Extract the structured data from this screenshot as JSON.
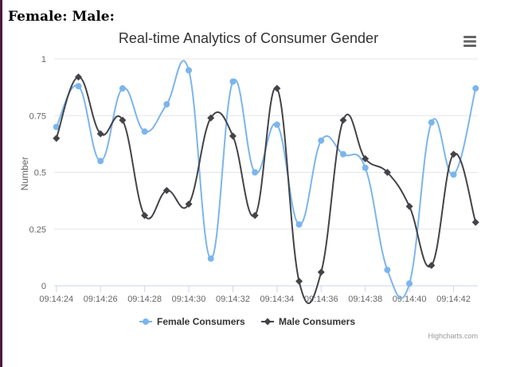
{
  "page": {
    "female_label": "Female:",
    "male_label": "Male:"
  },
  "chart_data": {
    "type": "line",
    "title": "Real-time Analytics of Consumer Gender",
    "ylabel": "Number",
    "xlabel": "",
    "ylim": [
      0,
      1
    ],
    "yticks": [
      0,
      0.25,
      0.5,
      0.75,
      1
    ],
    "ytick_labels": [
      "0",
      "0.25",
      "0.5",
      "0.75",
      "1"
    ],
    "x_range": [
      "09:14:23.90",
      "09:14:43.10"
    ],
    "x": [
      "09:14:24",
      "09:14:25",
      "09:14:26",
      "09:14:27",
      "09:14:28",
      "09:14:29",
      "09:14:30",
      "09:14:31",
      "09:14:32",
      "09:14:33",
      "09:14:34",
      "09:14:35",
      "09:14:36",
      "09:14:37",
      "09:14:38",
      "09:14:39",
      "09:14:40",
      "09:14:41",
      "09:14:42",
      "09:14:43"
    ],
    "xtick_labels": [
      "09:14:24",
      "09:14:26",
      "09:14:28",
      "09:14:30",
      "09:14:32",
      "09:14:34",
      "09:14:36",
      "09:14:38",
      "09:14:40",
      "09:14:42"
    ],
    "grid": true,
    "legend_position": "bottom-center",
    "credits": "Highcharts.com",
    "series": [
      {
        "name": "Female Consumers",
        "color": "#7cb5ec",
        "marker": "circle",
        "values": [
          0.7,
          0.88,
          0.55,
          0.87,
          0.68,
          0.8,
          0.95,
          0.12,
          0.9,
          0.5,
          0.71,
          0.27,
          0.64,
          0.58,
          0.52,
          0.07,
          0.01,
          0.72,
          0.49,
          0.87
        ]
      },
      {
        "name": "Male Consumers",
        "color": "#434348",
        "marker": "diamond",
        "values": [
          0.65,
          0.92,
          0.67,
          0.73,
          0.31,
          0.42,
          0.36,
          0.74,
          0.66,
          0.31,
          0.87,
          0.02,
          0.06,
          0.73,
          0.56,
          0.5,
          0.35,
          0.09,
          0.58,
          0.28
        ]
      }
    ]
  },
  "icons": {
    "menu": "hamburger-menu-icon",
    "female_legend": "circle-marker-icon",
    "male_legend": "diamond-marker-icon"
  }
}
